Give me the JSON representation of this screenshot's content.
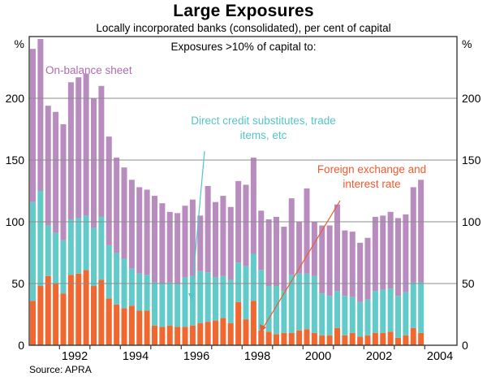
{
  "title": "Large Exposures",
  "subtitle": "Locally incorporated banks (consolidated), per cent of capital",
  "annotation": "Exposures >10% of capital to:",
  "source": "Source: APRA",
  "colors": {
    "purple_bar": "#b88cbf",
    "teal_bar": "#62cbc9",
    "orange_bar": "#f0682f",
    "purple_text": "#ad6cb0",
    "teal_text": "#54c4c9",
    "orange_text": "#f05a30",
    "gridline": "#8c8c8c",
    "border": "#3a3a3a",
    "text": "#000000"
  },
  "labels": {
    "on_balance": "On-balance sheet",
    "direct_credit": "Direct credit substitutes, trade items, etc",
    "foreign_exchange": "Foreign exchange and interest rate"
  },
  "axis": {
    "y_unit": "%",
    "y_ticks": [
      0,
      50,
      100,
      150,
      200
    ],
    "y_max": 250,
    "year_ticks": [
      1992,
      1993,
      1994,
      1995,
      1996,
      1997,
      1998,
      1999,
      2000,
      2001,
      2002,
      2003,
      2004
    ],
    "year_labels": [
      "1992",
      "1994",
      "1996",
      "1998",
      "2000",
      "2002",
      "2004"
    ]
  },
  "chart_data": {
    "type": "bar",
    "stacked": true,
    "title": "Large Exposures",
    "ylabel": "% of capital",
    "ylim": [
      0,
      250
    ],
    "grid": true,
    "x": [
      "1991Q1",
      "1991Q2",
      "1991Q3",
      "1991Q4",
      "1992Q1",
      "1992Q2",
      "1992Q3",
      "1992Q4",
      "1993Q1",
      "1993Q2",
      "1993Q3",
      "1993Q4",
      "1994Q1",
      "1994Q2",
      "1994Q3",
      "1994Q4",
      "1995Q1",
      "1995Q2",
      "1995Q3",
      "1995Q4",
      "1996Q1",
      "1996Q2",
      "1996Q3",
      "1996Q4",
      "1997Q1",
      "1997Q2",
      "1997Q3",
      "1997Q4",
      "1998Q1",
      "1998Q2",
      "1998Q3",
      "1998Q4",
      "1999Q1",
      "1999Q2",
      "1999Q3",
      "1999Q4",
      "2000Q1",
      "2000Q2",
      "2000Q3",
      "2000Q4",
      "2001Q1",
      "2001Q2",
      "2001Q3",
      "2001Q4",
      "2002Q1",
      "2002Q2",
      "2002Q3",
      "2002Q4",
      "2003Q1",
      "2003Q2",
      "2003Q3",
      "2003Q4"
    ],
    "series": [
      {
        "name": "Foreign exchange and interest rate",
        "color": "#f0682f",
        "values": [
          36,
          48,
          56,
          50,
          42,
          57,
          58,
          61,
          48,
          53,
          38,
          33,
          30,
          32,
          28,
          28,
          16,
          15,
          16,
          15,
          15,
          16,
          18,
          19,
          20,
          22,
          18,
          35,
          21,
          36,
          12,
          11,
          9,
          10,
          10,
          12,
          13,
          10,
          8,
          8,
          14,
          8,
          10,
          7,
          8,
          10,
          10,
          11,
          6,
          8,
          14,
          10
        ]
      },
      {
        "name": "Direct credit substitutes, trade items, etc",
        "color": "#62cbc9",
        "values": [
          80,
          77,
          41,
          41,
          43,
          45,
          45,
          44,
          47,
          51,
          43,
          42,
          40,
          30,
          30,
          29,
          35,
          35,
          35,
          35,
          40,
          40,
          42,
          40,
          35,
          34,
          35,
          32,
          43,
          38,
          49,
          37,
          39,
          34,
          47,
          46,
          45,
          46,
          34,
          32,
          30,
          32,
          29,
          28,
          29,
          34,
          35,
          35,
          34,
          35,
          37,
          41
        ]
      },
      {
        "name": "On-balance sheet",
        "color": "#b88cbf",
        "values": [
          124,
          123,
          97,
          98,
          94,
          111,
          114,
          115,
          105,
          106,
          88,
          77,
          74,
          72,
          70,
          69,
          70,
          65,
          57,
          57,
          58,
          62,
          45,
          70,
          61,
          65,
          59,
          66,
          66,
          78,
          48,
          54,
          56,
          52,
          62,
          42,
          69,
          44,
          55,
          57,
          70,
          53,
          53,
          48,
          50,
          60,
          60,
          62,
          63,
          63,
          77,
          83
        ]
      }
    ]
  }
}
